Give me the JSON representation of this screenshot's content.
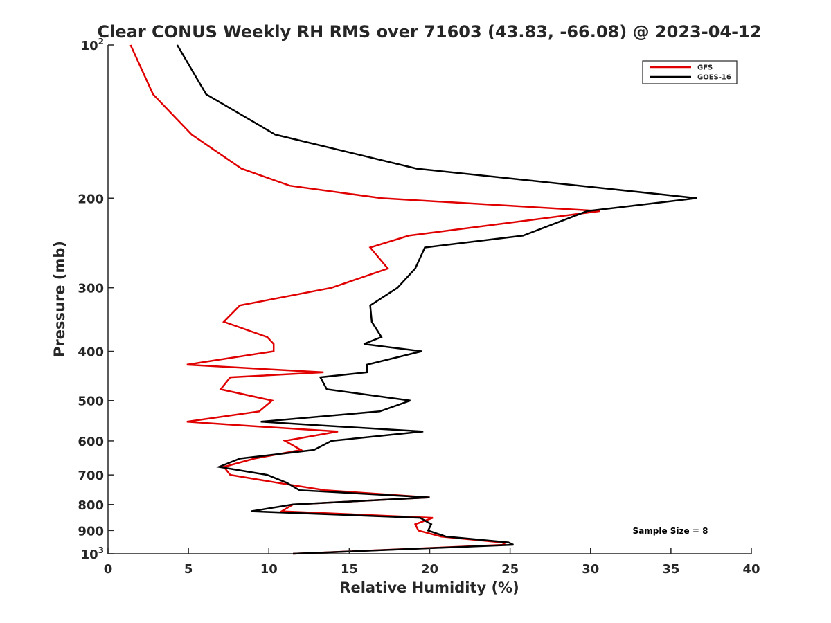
{
  "chart_data": {
    "type": "line",
    "title": "Clear CONUS Weekly RH RMS over 71603 (43.83, -66.08) @ 2023-04-12",
    "xlabel": "Relative Humidity (%)",
    "ylabel": "Pressure (mb)",
    "xlim": [
      0,
      40
    ],
    "ylim": [
      100,
      1000
    ],
    "y_scale": "log",
    "y_reversed": true,
    "x_ticks": [
      0,
      5,
      10,
      15,
      20,
      25,
      30,
      35,
      40
    ],
    "y_ticks": [
      {
        "value": 100,
        "base": "10",
        "exp": "2"
      },
      {
        "value": 200,
        "label": "200"
      },
      {
        "value": 300,
        "label": "300"
      },
      {
        "value": 400,
        "label": "400"
      },
      {
        "value": 500,
        "label": "500"
      },
      {
        "value": 600,
        "label": "600"
      },
      {
        "value": 700,
        "label": "700"
      },
      {
        "value": 800,
        "label": "800"
      },
      {
        "value": 900,
        "label": "900"
      },
      {
        "value": 1000,
        "base": "10",
        "exp": "3"
      }
    ],
    "grid": false,
    "legend_position": "top-right",
    "annotation": "Sample Size = 8",
    "series": [
      {
        "name": "GFS",
        "color": "#e00000",
        "points": [
          [
            1.4,
            100
          ],
          [
            2.8,
            125
          ],
          [
            5.2,
            150
          ],
          [
            8.3,
            175
          ],
          [
            11.3,
            189
          ],
          [
            17.0,
            200
          ],
          [
            30.6,
            212
          ],
          [
            18.7,
            237
          ],
          [
            16.3,
            250
          ],
          [
            17.4,
            275
          ],
          [
            13.9,
            300
          ],
          [
            8.2,
            325
          ],
          [
            7.2,
            350
          ],
          [
            9.9,
            375
          ],
          [
            10.3,
            387
          ],
          [
            10.3,
            400
          ],
          [
            4.9,
            425
          ],
          [
            13.4,
            440
          ],
          [
            7.6,
            450
          ],
          [
            7.0,
            475
          ],
          [
            10.2,
            500
          ],
          [
            9.4,
            525
          ],
          [
            4.9,
            550
          ],
          [
            8.5,
            560
          ],
          [
            14.3,
            575
          ],
          [
            11.0,
            600
          ],
          [
            12.0,
            625
          ],
          [
            9.1,
            650
          ],
          [
            7.2,
            675
          ],
          [
            7.6,
            700
          ],
          [
            10.5,
            725
          ],
          [
            13.5,
            750
          ],
          [
            20.0,
            775
          ],
          [
            11.5,
            800
          ],
          [
            10.8,
            825
          ],
          [
            20.2,
            850
          ],
          [
            19.1,
            875
          ],
          [
            19.3,
            900
          ],
          [
            20.7,
            925
          ],
          [
            24.5,
            950
          ],
          [
            24.7,
            960
          ],
          [
            11.5,
            1000
          ]
        ]
      },
      {
        "name": "GOES-16",
        "color": "#000000",
        "points": [
          [
            4.3,
            100
          ],
          [
            6.1,
            125
          ],
          [
            10.4,
            150
          ],
          [
            19.2,
            175
          ],
          [
            29.3,
            189
          ],
          [
            36.6,
            200
          ],
          [
            29.8,
            212
          ],
          [
            25.8,
            237
          ],
          [
            19.7,
            250
          ],
          [
            19.1,
            275
          ],
          [
            18.0,
            300
          ],
          [
            16.3,
            325
          ],
          [
            16.4,
            350
          ],
          [
            17.0,
            375
          ],
          [
            15.9,
            387
          ],
          [
            19.5,
            400
          ],
          [
            16.1,
            425
          ],
          [
            16.1,
            440
          ],
          [
            13.2,
            450
          ],
          [
            13.6,
            475
          ],
          [
            18.8,
            500
          ],
          [
            16.9,
            525
          ],
          [
            9.5,
            550
          ],
          [
            13.4,
            560
          ],
          [
            19.6,
            575
          ],
          [
            13.9,
            600
          ],
          [
            12.8,
            625
          ],
          [
            8.2,
            650
          ],
          [
            6.9,
            675
          ],
          [
            9.9,
            700
          ],
          [
            11.1,
            725
          ],
          [
            11.9,
            750
          ],
          [
            20.0,
            775
          ],
          [
            11.5,
            800
          ],
          [
            8.9,
            825
          ],
          [
            19.4,
            850
          ],
          [
            20.1,
            875
          ],
          [
            19.9,
            900
          ],
          [
            21.0,
            925
          ],
          [
            24.9,
            950
          ],
          [
            25.2,
            960
          ],
          [
            11.5,
            1000
          ]
        ]
      }
    ]
  }
}
